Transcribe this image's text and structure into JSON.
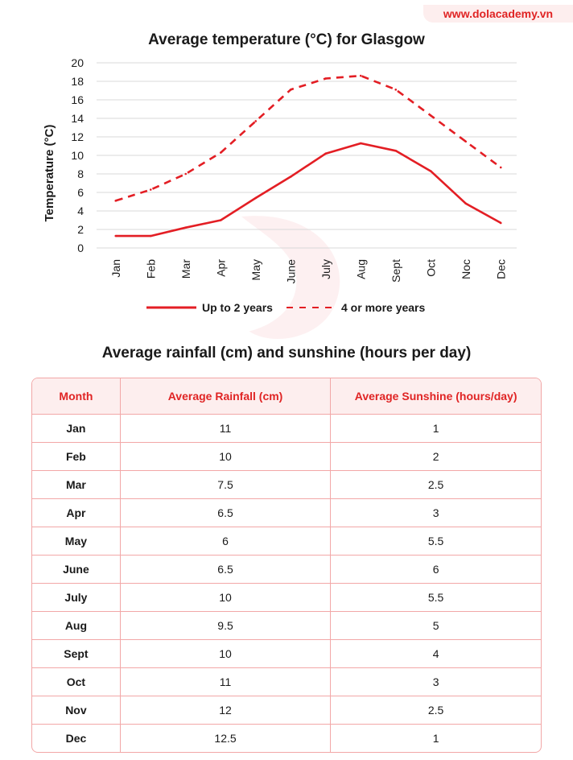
{
  "brand": "www.dolacademy.vn",
  "chart_data": {
    "type": "line",
    "title": "Average temperature (°C) for Glasgow",
    "ylabel": "Temperature   (°C)",
    "xlabel": "",
    "categories": [
      "Jan",
      "Feb",
      "Mar",
      "Apr",
      "May",
      "June",
      "July",
      "Aug",
      "Sept",
      "Oct",
      "Noc",
      "Dec"
    ],
    "ylim": [
      0,
      20
    ],
    "yticks": [
      "0",
      "2",
      "4",
      "6",
      "8",
      "10",
      "12",
      "14",
      "16",
      "18",
      "20"
    ],
    "grid": true,
    "legend_position": "bottom",
    "series": [
      {
        "name": "Up to 2 years",
        "style": "solid",
        "color": "#e31e24",
        "values": [
          1.3,
          1.3,
          2.2,
          3.0,
          5.4,
          7.7,
          10.2,
          11.3,
          10.5,
          8.3,
          4.8,
          2.7
        ]
      },
      {
        "name": "4 or more years",
        "style": "dashed",
        "color": "#e31e24",
        "values": [
          5.1,
          6.3,
          8.0,
          10.3,
          13.7,
          17.1,
          18.3,
          18.6,
          17.1,
          14.3,
          11.5,
          8.7
        ]
      }
    ]
  },
  "table": {
    "title": "Average rainfall (cm) and sunshine (hours per day)",
    "headers": [
      "Month",
      "Average Rainfall (cm)",
      "Average Sunshine (hours/day)"
    ],
    "rows": [
      [
        "Jan",
        "11",
        "1"
      ],
      [
        "Feb",
        "10",
        "2"
      ],
      [
        "Mar",
        "7.5",
        "2.5"
      ],
      [
        "Apr",
        "6.5",
        "3"
      ],
      [
        "May",
        "6",
        "5.5"
      ],
      [
        "June",
        "6.5",
        "6"
      ],
      [
        "July",
        "10",
        "5.5"
      ],
      [
        "Aug",
        "9.5",
        "5"
      ],
      [
        "Sept",
        "10",
        "4"
      ],
      [
        "Oct",
        "11",
        "3"
      ],
      [
        "Nov",
        "12",
        "2.5"
      ],
      [
        "Dec",
        "12.5",
        "1"
      ]
    ]
  },
  "colors": {
    "accent": "#e31e24",
    "header_bg": "#fdeeee",
    "border": "#f2a7a7",
    "grid": "#d9d9d9"
  }
}
